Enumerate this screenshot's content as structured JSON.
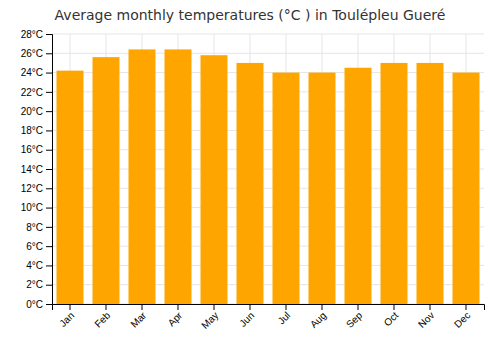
{
  "chart_data": {
    "type": "bar",
    "title": "Average monthly temperatures (°C ) in Toulépleu Gueré",
    "categories": [
      "Jan",
      "Feb",
      "Mar",
      "Apr",
      "May",
      "Jun",
      "Jul",
      "Aug",
      "Sep",
      "Oct",
      "Nov",
      "Dec"
    ],
    "values": [
      24.2,
      25.6,
      26.4,
      26.4,
      25.8,
      25.0,
      24.0,
      24.0,
      24.5,
      25.0,
      25.0,
      24.0
    ],
    "color": "#FFA500",
    "ylim": [
      0,
      28
    ],
    "yticks": [
      {
        "value": 0,
        "label": "0°C"
      },
      {
        "value": 2,
        "label": "2°C"
      },
      {
        "value": 4,
        "label": "4°C"
      },
      {
        "value": 6,
        "label": "6°C"
      },
      {
        "value": 8,
        "label": "8°C"
      },
      {
        "value": 10,
        "label": "10°C"
      },
      {
        "value": 12,
        "label": "12°C"
      },
      {
        "value": 14,
        "label": "14°C"
      },
      {
        "value": 16,
        "label": "16°C"
      },
      {
        "value": 18,
        "label": "18°C"
      },
      {
        "value": 20,
        "label": "20°C"
      },
      {
        "value": 22,
        "label": "22°C"
      },
      {
        "value": 24,
        "label": "24°C"
      },
      {
        "value": 26,
        "label": "26°C"
      },
      {
        "value": 28,
        "label": "28°C"
      }
    ],
    "grid": true
  }
}
